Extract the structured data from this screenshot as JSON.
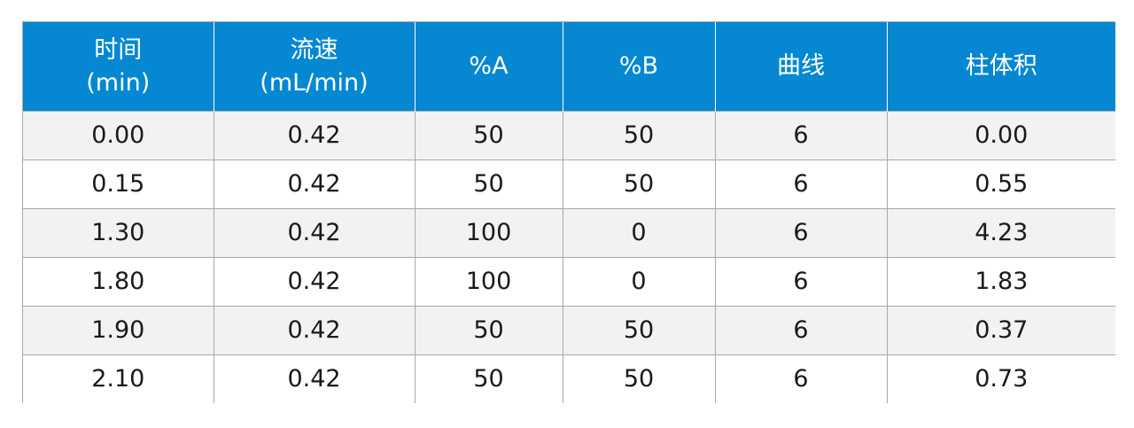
{
  "table": {
    "header_bg": "#0588d1",
    "stripe_bg": "#f2f2f4",
    "columns": [
      {
        "line1": "时间",
        "line2": "(min)"
      },
      {
        "line1": "流速",
        "line2": "(mL/min)"
      },
      {
        "line1": "%A",
        "line2": ""
      },
      {
        "line1": "%B",
        "line2": ""
      },
      {
        "line1": "曲线",
        "line2": ""
      },
      {
        "line1": "柱体积",
        "line2": ""
      }
    ],
    "rows": [
      [
        "0.00",
        "0.42",
        "50",
        "50",
        "6",
        "0.00"
      ],
      [
        "0.15",
        "0.42",
        "50",
        "50",
        "6",
        "0.55"
      ],
      [
        "1.30",
        "0.42",
        "100",
        "0",
        "6",
        "4.23"
      ],
      [
        "1.80",
        "0.42",
        "100",
        "0",
        "6",
        "1.83"
      ],
      [
        "1.90",
        "0.42",
        "50",
        "50",
        "6",
        "0.37"
      ],
      [
        "2.10",
        "0.42",
        "50",
        "50",
        "6",
        "0.73"
      ]
    ]
  }
}
